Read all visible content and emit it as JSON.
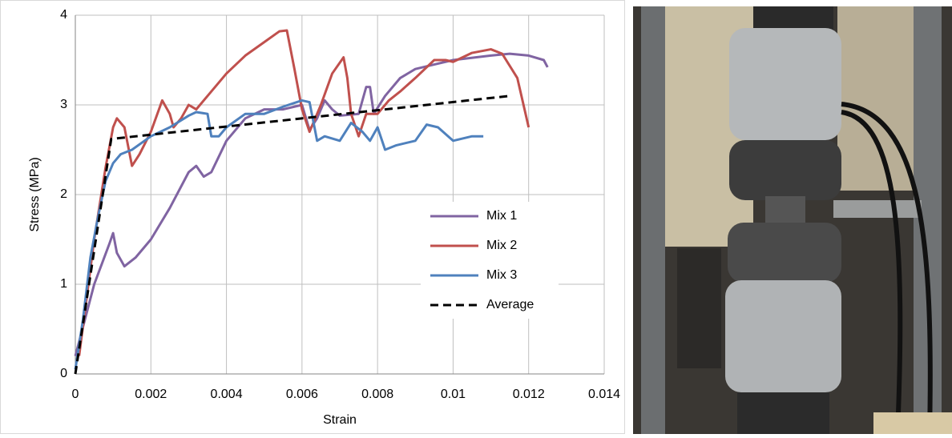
{
  "chart_data": {
    "type": "line",
    "x_label": "Strain",
    "y_label": "Stress (MPa)",
    "xlim": [
      0,
      0.014
    ],
    "xticks": [
      0,
      0.002,
      0.004,
      0.006,
      0.008,
      0.01,
      0.012,
      0.014
    ],
    "ylim": [
      0,
      4
    ],
    "yticks": [
      0,
      1,
      2,
      3,
      4
    ],
    "grid": true,
    "legend": "center-right",
    "series": [
      {
        "name": "Mix 1",
        "color": "#8064a2",
        "dash": false,
        "x": [
          0,
          0.0005,
          0.0009,
          0.001,
          0.0011,
          0.0013,
          0.0016,
          0.002,
          0.0025,
          0.003,
          0.0032,
          0.0034,
          0.0036,
          0.004,
          0.0045,
          0.005,
          0.0055,
          0.006,
          0.0062,
          0.0064,
          0.0066,
          0.0068,
          0.007,
          0.0075,
          0.0077,
          0.0078,
          0.0079,
          0.0082,
          0.0086,
          0.009,
          0.0095,
          0.01,
          0.011,
          0.0115,
          0.012,
          0.0124,
          0.0125
        ],
        "values": [
          0.2,
          1.0,
          1.45,
          1.57,
          1.35,
          1.2,
          1.3,
          1.5,
          1.85,
          2.25,
          2.32,
          2.2,
          2.25,
          2.6,
          2.85,
          2.95,
          2.95,
          3.0,
          2.72,
          2.85,
          3.05,
          2.95,
          2.88,
          2.9,
          3.2,
          3.2,
          2.9,
          3.1,
          3.3,
          3.4,
          3.45,
          3.5,
          3.55,
          3.57,
          3.55,
          3.5,
          3.42
        ]
      },
      {
        "name": "Mix 2",
        "color": "#c0504d",
        "dash": false,
        "x": [
          0.0001,
          0.0005,
          0.0008,
          0.001,
          0.0011,
          0.0013,
          0.0015,
          0.0017,
          0.002,
          0.0023,
          0.0025,
          0.0026,
          0.0028,
          0.003,
          0.0032,
          0.0035,
          0.004,
          0.0045,
          0.005,
          0.0054,
          0.0056,
          0.0058,
          0.006,
          0.0062,
          0.0065,
          0.0068,
          0.0071,
          0.0072,
          0.0073,
          0.0075,
          0.0077,
          0.008,
          0.0083,
          0.0086,
          0.009,
          0.0095,
          0.0098,
          0.01,
          0.0105,
          0.011,
          0.0113,
          0.0117,
          0.012
        ],
        "values": [
          0.2,
          1.5,
          2.3,
          2.75,
          2.85,
          2.75,
          2.32,
          2.45,
          2.7,
          3.05,
          2.9,
          2.75,
          2.85,
          3.0,
          2.95,
          3.1,
          3.35,
          3.55,
          3.7,
          3.82,
          3.83,
          3.4,
          2.95,
          2.7,
          3.0,
          3.35,
          3.53,
          3.3,
          2.9,
          2.65,
          2.9,
          2.9,
          3.05,
          3.15,
          3.3,
          3.5,
          3.5,
          3.48,
          3.58,
          3.62,
          3.57,
          3.3,
          2.75
        ]
      },
      {
        "name": "Mix 3",
        "color": "#4f81bd",
        "dash": false,
        "x": [
          0,
          0.0002,
          0.0004,
          0.0006,
          0.0008,
          0.001,
          0.0012,
          0.0015,
          0.002,
          0.0025,
          0.003,
          0.0032,
          0.0035,
          0.0036,
          0.0038,
          0.004,
          0.0045,
          0.005,
          0.0055,
          0.006,
          0.0062,
          0.0064,
          0.0066,
          0.007,
          0.0073,
          0.0076,
          0.0078,
          0.008,
          0.0082,
          0.0085,
          0.009,
          0.0093,
          0.0096,
          0.01,
          0.0105,
          0.0108
        ],
        "values": [
          0.05,
          0.6,
          1.3,
          1.75,
          2.15,
          2.35,
          2.45,
          2.5,
          2.65,
          2.75,
          2.88,
          2.92,
          2.9,
          2.65,
          2.65,
          2.75,
          2.9,
          2.9,
          2.98,
          3.05,
          3.03,
          2.6,
          2.65,
          2.6,
          2.8,
          2.7,
          2.6,
          2.75,
          2.5,
          2.55,
          2.6,
          2.78,
          2.75,
          2.6,
          2.65,
          2.65
        ]
      },
      {
        "name": "Average",
        "color": "#000000",
        "dash": true,
        "x": [
          0,
          0.00095,
          0.0115
        ],
        "values": [
          0,
          2.62,
          3.1
        ]
      }
    ]
  }
}
